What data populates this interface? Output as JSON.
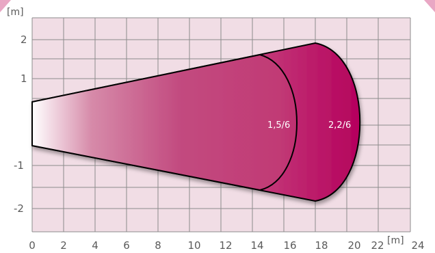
{
  "colors": {
    "grid_background": "#f1dde5",
    "grid_line": "#8c8c8c",
    "beam_dark": "#b5005e",
    "beam_mid": "#c13f7a",
    "beam_light": "#ffffff",
    "corner_accent": "#e9a7c4",
    "label_text": "#5a5a5a"
  },
  "axes": {
    "x_unit": "[m]",
    "y_unit": "[m]",
    "x_ticks": [
      "0",
      "2",
      "4",
      "6",
      "8",
      "10",
      "12",
      "14",
      "16",
      "18",
      "20",
      "22",
      "24"
    ],
    "y_ticks": [
      "2",
      "1",
      "-1",
      "-2"
    ]
  },
  "zones": [
    {
      "label": "1,5/6",
      "range_m": 18
    },
    {
      "label": "2,2/6",
      "range_m": 21
    }
  ]
}
